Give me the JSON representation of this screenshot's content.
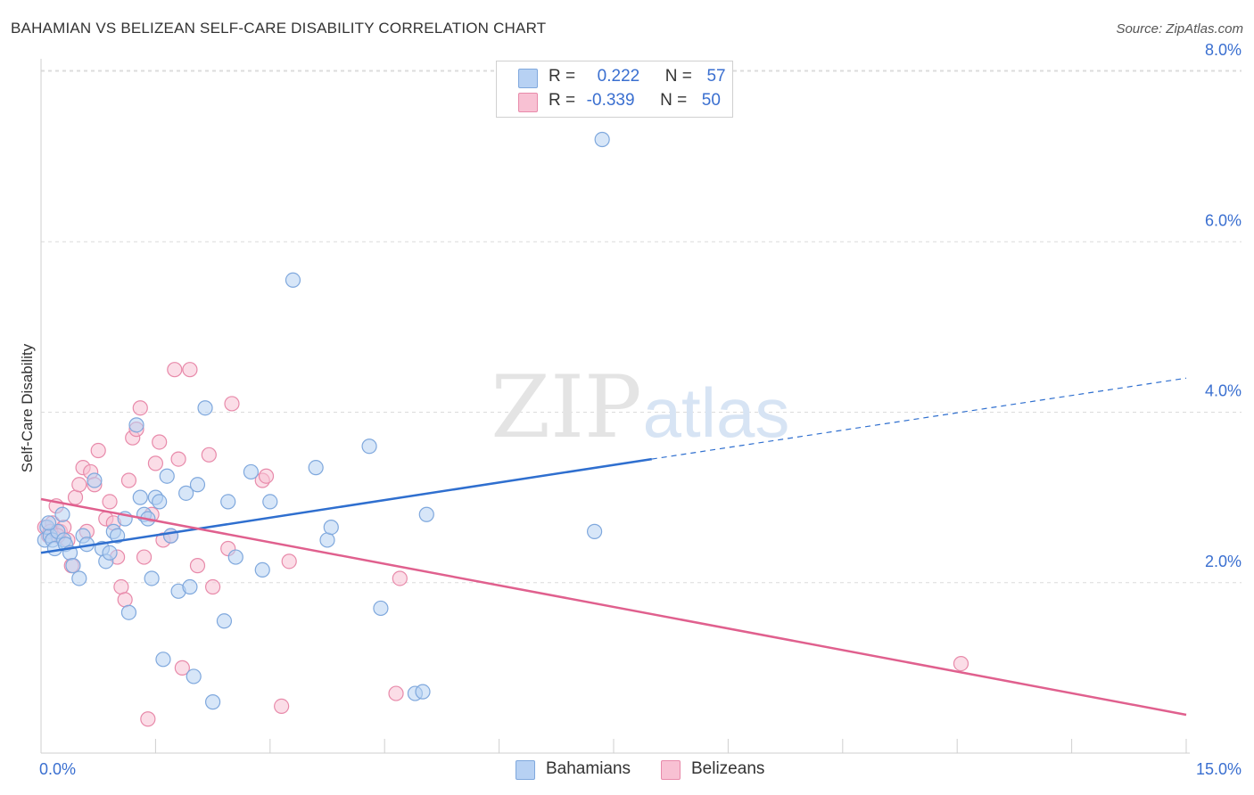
{
  "title": "BAHAMIAN VS BELIZEAN SELF-CARE DISABILITY CORRELATION CHART",
  "source": "Source: ZipAtlas.com",
  "watermark": {
    "zip": "ZIP",
    "atlas": "atlas"
  },
  "legend": {
    "rows": [
      {
        "r_label": "R =",
        "r_value": "0.222",
        "n_label": "N =",
        "n_value": "57"
      },
      {
        "r_label": "R =",
        "r_value": "-0.339",
        "n_label": "N =",
        "n_value": "50"
      }
    ]
  },
  "bottom_legend": [
    "Bahamians",
    "Belizeans"
  ],
  "colors": {
    "bahamians_fill": "#b7d1f3",
    "bahamians_stroke": "#7fa8dd",
    "bahamians_line": "#2f6fcf",
    "belizeans_fill": "#f8c1d3",
    "belizeans_stroke": "#e88aaa",
    "belizeans_line": "#e0608e",
    "tick_label": "#3a6fd0",
    "grid": "#dcdcdc"
  },
  "chart_data": {
    "type": "scatter",
    "xlabel": "",
    "ylabel": "Self-Care Disability",
    "xlim": [
      0,
      15
    ],
    "ylim": [
      0,
      8
    ],
    "x_tick_labels": [
      "0.0%",
      "15.0%"
    ],
    "y_ticks": [
      2,
      4,
      6,
      8
    ],
    "y_tick_labels": [
      "2.0%",
      "4.0%",
      "6.0%",
      "8.0%"
    ],
    "legend_position": "top-center",
    "grid": true,
    "series": [
      {
        "name": "Bahamians",
        "points": [
          [
            0.05,
            2.5
          ],
          [
            0.08,
            2.65
          ],
          [
            0.12,
            2.55
          ],
          [
            0.15,
            2.5
          ],
          [
            0.18,
            2.4
          ],
          [
            0.22,
            2.6
          ],
          [
            0.28,
            2.8
          ],
          [
            0.3,
            2.5
          ],
          [
            0.32,
            2.45
          ],
          [
            0.38,
            2.35
          ],
          [
            0.42,
            2.2
          ],
          [
            0.5,
            2.05
          ],
          [
            0.55,
            2.55
          ],
          [
            0.6,
            2.45
          ],
          [
            0.7,
            3.2
          ],
          [
            0.8,
            2.4
          ],
          [
            0.85,
            2.25
          ],
          [
            0.9,
            2.35
          ],
          [
            0.95,
            2.6
          ],
          [
            1.0,
            2.55
          ],
          [
            1.1,
            2.75
          ],
          [
            1.15,
            1.65
          ],
          [
            1.25,
            3.85
          ],
          [
            1.3,
            3.0
          ],
          [
            1.35,
            2.8
          ],
          [
            1.4,
            2.75
          ],
          [
            1.45,
            2.05
          ],
          [
            1.5,
            3.0
          ],
          [
            1.55,
            2.95
          ],
          [
            1.6,
            1.1
          ],
          [
            1.65,
            3.25
          ],
          [
            1.7,
            2.55
          ],
          [
            1.8,
            1.9
          ],
          [
            1.9,
            3.05
          ],
          [
            1.95,
            1.95
          ],
          [
            2.0,
            0.9
          ],
          [
            2.05,
            3.15
          ],
          [
            2.15,
            4.05
          ],
          [
            2.25,
            0.6
          ],
          [
            2.4,
            1.55
          ],
          [
            2.45,
            2.95
          ],
          [
            2.55,
            2.3
          ],
          [
            2.75,
            3.3
          ],
          [
            2.9,
            2.15
          ],
          [
            3.0,
            2.95
          ],
          [
            3.3,
            5.55
          ],
          [
            3.6,
            3.35
          ],
          [
            3.75,
            2.5
          ],
          [
            3.8,
            2.65
          ],
          [
            4.3,
            3.6
          ],
          [
            4.45,
            1.7
          ],
          [
            4.9,
            0.7
          ],
          [
            5.0,
            0.72
          ],
          [
            5.05,
            2.8
          ],
          [
            7.25,
            2.6
          ],
          [
            7.35,
            7.2
          ],
          [
            0.1,
            2.7
          ]
        ],
        "trend": {
          "x": [
            0,
            8.0
          ],
          "y": [
            2.35,
            3.45
          ],
          "dashed_to": [
            15,
            4.4
          ]
        }
      },
      {
        "name": "Belizeans",
        "points": [
          [
            0.05,
            2.65
          ],
          [
            0.1,
            2.55
          ],
          [
            0.15,
            2.7
          ],
          [
            0.2,
            2.9
          ],
          [
            0.25,
            2.6
          ],
          [
            0.3,
            2.65
          ],
          [
            0.35,
            2.5
          ],
          [
            0.4,
            2.2
          ],
          [
            0.45,
            3.0
          ],
          [
            0.5,
            3.15
          ],
          [
            0.55,
            3.35
          ],
          [
            0.6,
            2.6
          ],
          [
            0.65,
            3.3
          ],
          [
            0.7,
            3.15
          ],
          [
            0.75,
            3.55
          ],
          [
            0.85,
            2.75
          ],
          [
            0.9,
            2.95
          ],
          [
            0.95,
            2.7
          ],
          [
            1.0,
            2.3
          ],
          [
            1.05,
            1.95
          ],
          [
            1.1,
            1.8
          ],
          [
            1.15,
            3.2
          ],
          [
            1.2,
            3.7
          ],
          [
            1.25,
            3.8
          ],
          [
            1.3,
            4.05
          ],
          [
            1.35,
            2.3
          ],
          [
            1.4,
            0.4
          ],
          [
            1.45,
            2.8
          ],
          [
            1.5,
            3.4
          ],
          [
            1.55,
            3.65
          ],
          [
            1.6,
            2.5
          ],
          [
            1.7,
            2.55
          ],
          [
            1.75,
            4.5
          ],
          [
            1.8,
            3.45
          ],
          [
            1.85,
            1.0
          ],
          [
            1.95,
            4.5
          ],
          [
            2.05,
            2.2
          ],
          [
            2.2,
            3.5
          ],
          [
            2.25,
            1.95
          ],
          [
            2.45,
            2.4
          ],
          [
            2.5,
            4.1
          ],
          [
            2.9,
            3.2
          ],
          [
            2.95,
            3.25
          ],
          [
            3.15,
            0.55
          ],
          [
            3.25,
            2.25
          ],
          [
            4.65,
            0.7
          ],
          [
            4.7,
            2.05
          ],
          [
            12.05,
            1.05
          ],
          [
            0.12,
            2.6
          ],
          [
            0.22,
            2.55
          ]
        ],
        "trend": {
          "x": [
            0,
            15
          ],
          "y": [
            2.98,
            0.45
          ]
        }
      }
    ]
  }
}
